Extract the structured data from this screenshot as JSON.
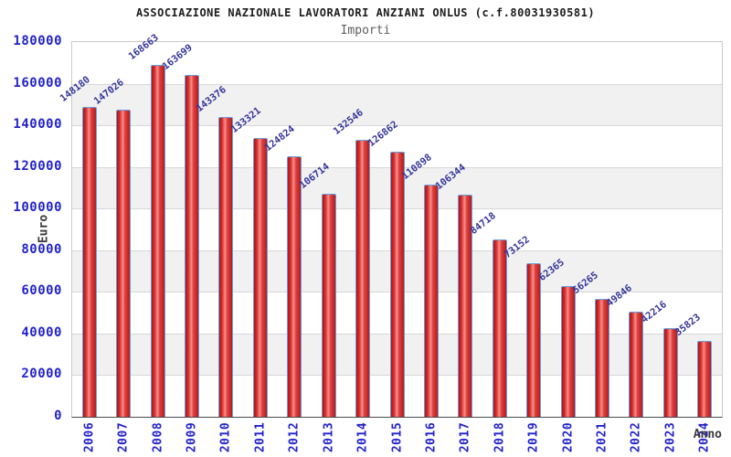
{
  "chart_data": {
    "type": "bar",
    "title": "ASSOCIAZIONE NAZIONALE LAVORATORI ANZIANI ONLUS (c.f.80031930581)",
    "subtitle": "Importi",
    "xlabel": "Anno",
    "ylabel": "Euro",
    "categories": [
      "2006",
      "2007",
      "2008",
      "2009",
      "2010",
      "2011",
      "2012",
      "2013",
      "2014",
      "2015",
      "2016",
      "2017",
      "2018",
      "2019",
      "2020",
      "2021",
      "2022",
      "2023",
      "2024"
    ],
    "values": [
      148180,
      147026,
      168663,
      163699,
      143376,
      133321,
      124824,
      106714,
      132546,
      126862,
      110898,
      106344,
      84718,
      73152,
      62365,
      56265,
      49846,
      42216,
      35823
    ],
    "ylim": [
      0,
      180000
    ],
    "ytick_step": 20000,
    "yticks": [
      0,
      20000,
      40000,
      60000,
      80000,
      100000,
      120000,
      140000,
      160000,
      180000
    ],
    "grid": "horizontal lines with alternating shaded bands",
    "legend_position": "none",
    "colors": {
      "bar_fill": "#d92b2b",
      "bar_fill_highlight": "#f2928b",
      "bar_fill_dark": "#a81616",
      "bar_border": "#64a0dc",
      "tick_label": "#2222cc",
      "value_label": "#353599",
      "band": "#f1f1f1",
      "gridline": "#d7d7d7",
      "title": "#1c1c1c",
      "subtitle": "#5e5e5e",
      "axis_title": "#3a3a3a"
    }
  }
}
